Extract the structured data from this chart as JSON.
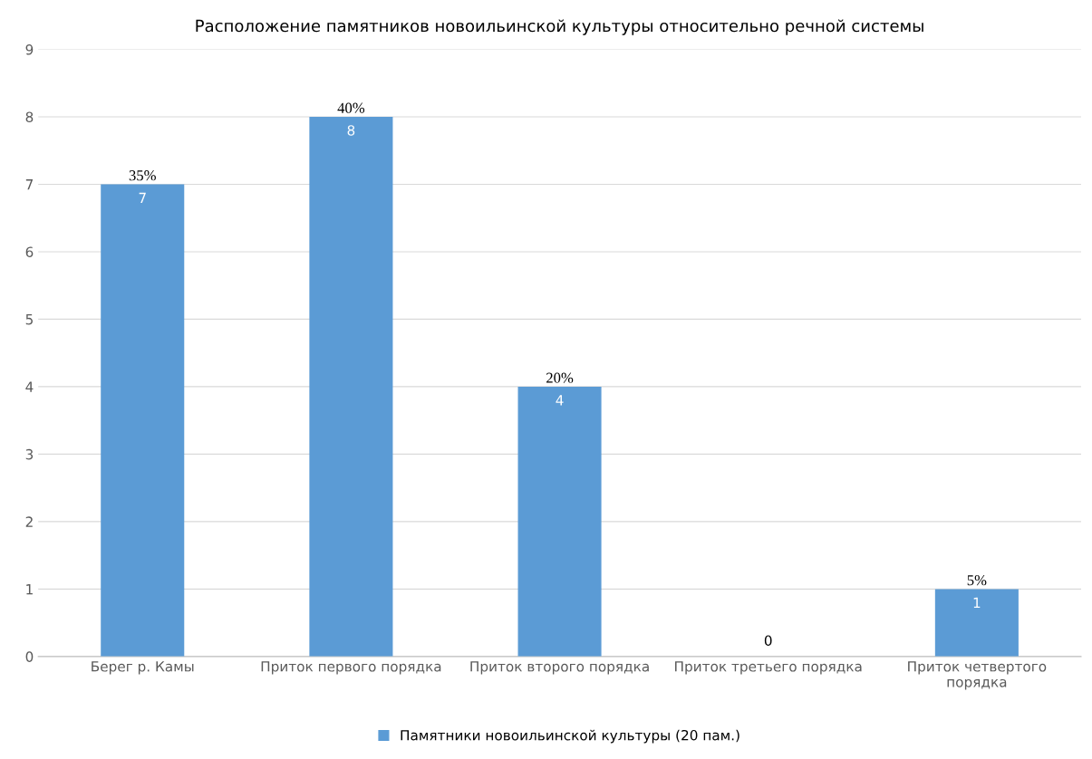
{
  "chart_data": {
    "type": "bar",
    "title": "Расположение памятников новоильинской культуры относительно речной системы",
    "categories": [
      "Берег р. Камы",
      "Приток первого порядка",
      "Приток второго порядка",
      "Приток третьего порядка",
      "Приток четвертого\nпорядка"
    ],
    "series": [
      {
        "name": "Памятники новоильинской культуры (20 пам.)",
        "color": "#5b9bd5",
        "values": [
          7,
          8,
          4,
          0,
          1
        ]
      }
    ],
    "annotations": [
      {
        "text": "35%",
        "x": "Берег р. Камы",
        "y": 7
      },
      {
        "text": "40%",
        "x": "Приток первого порядка",
        "y": 8
      },
      {
        "text": "20%",
        "x": "Приток второго порядка",
        "y": 4
      },
      {
        "text": "5%",
        "x": "Приток четвертого\nпорядка",
        "y": 1
      }
    ],
    "ylim": [
      0,
      9
    ],
    "yticks": [
      0,
      1,
      2,
      3,
      4,
      5,
      6,
      7,
      8,
      9
    ],
    "grid": "y",
    "legend": "bottom",
    "data_labels": true
  }
}
